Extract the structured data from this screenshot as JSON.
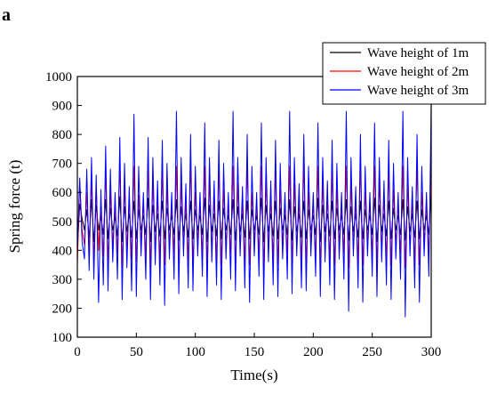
{
  "panel_label": "a",
  "chart_data": {
    "type": "line",
    "title": "",
    "xlabel": "Time(s)",
    "ylabel": "Spring force (t)",
    "xlim": [
      0,
      300
    ],
    "ylim": [
      100,
      1000
    ],
    "xticks": [
      0,
      50,
      100,
      150,
      200,
      250,
      300
    ],
    "yticks": [
      100,
      200,
      300,
      400,
      500,
      600,
      700,
      800,
      900,
      1000
    ],
    "grid": false,
    "legend_position": "top-right",
    "sample_step_s": 2,
    "series": [
      {
        "name": "Wave height of 1m",
        "color": "#000000",
        "values": [
          395,
          560,
          510,
          470,
          540,
          445,
          575,
          430,
          555,
          470,
          520,
          455,
          575,
          440,
          545,
          470,
          515,
          450,
          585,
          430,
          550,
          465,
          525,
          445,
          570,
          440,
          540,
          470,
          520,
          455,
          580,
          430,
          555,
          465,
          525,
          450,
          570,
          440,
          545,
          470,
          520,
          455,
          575,
          435,
          550,
          465,
          525,
          445,
          570,
          440,
          540,
          470,
          520,
          455,
          580,
          430,
          555,
          465,
          525,
          450,
          570,
          440,
          545,
          470,
          520,
          455,
          575,
          435,
          550,
          465,
          525,
          445,
          570,
          440,
          540,
          470,
          520,
          455,
          580,
          430,
          555,
          465,
          525,
          450,
          570,
          440,
          545,
          470,
          520,
          455,
          575,
          435,
          550,
          465,
          525,
          445,
          570,
          440,
          540,
          470,
          520,
          455,
          580,
          430,
          555,
          465,
          525,
          450,
          570,
          440,
          545,
          470,
          520,
          455,
          575,
          435,
          550,
          465,
          525,
          445,
          570,
          440,
          540,
          470,
          520,
          455,
          580,
          430,
          555,
          465,
          525,
          450,
          570,
          440,
          545,
          470,
          520,
          455,
          575,
          435,
          550,
          465,
          525,
          445,
          570,
          440,
          540,
          470,
          520,
          455,
          600
        ]
      },
      {
        "name": "Wave height of 2m",
        "color": "#ff0000",
        "values": [
          350,
          640,
          470,
          420,
          600,
          390,
          650,
          360,
          620,
          400,
          560,
          380,
          680,
          350,
          600,
          420,
          550,
          390,
          700,
          340,
          620,
          410,
          570,
          370,
          690,
          360,
          590,
          430,
          560,
          380,
          700,
          340,
          640,
          400,
          580,
          370,
          680,
          350,
          610,
          420,
          560,
          390,
          690,
          340,
          630,
          410,
          570,
          360,
          700,
          350,
          600,
          430,
          560,
          380,
          690,
          340,
          640,
          400,
          580,
          370,
          680,
          350,
          610,
          420,
          560,
          390,
          690,
          340,
          630,
          410,
          570,
          360,
          700,
          350,
          600,
          430,
          560,
          380,
          690,
          340,
          640,
          400,
          580,
          370,
          680,
          350,
          610,
          420,
          560,
          390,
          690,
          340,
          630,
          410,
          570,
          360,
          700,
          350,
          600,
          430,
          560,
          380,
          690,
          340,
          640,
          400,
          580,
          370,
          680,
          350,
          610,
          420,
          560,
          390,
          690,
          340,
          630,
          410,
          570,
          360,
          700,
          350,
          600,
          430,
          560,
          380,
          690,
          340,
          640,
          400,
          580,
          370,
          680,
          350,
          610,
          420,
          560,
          390,
          690,
          340,
          630,
          410,
          570,
          360,
          700,
          350,
          600,
          430,
          560,
          380,
          770
        ]
      },
      {
        "name": "Wave height of 3m",
        "color": "#0000ff",
        "values": [
          400,
          650,
          430,
          370,
          680,
          330,
          720,
          300,
          660,
          220,
          610,
          280,
          760,
          260,
          680,
          360,
          600,
          300,
          790,
          230,
          700,
          340,
          620,
          260,
          870,
          240,
          690,
          380,
          600,
          300,
          790,
          230,
          720,
          350,
          640,
          280,
          780,
          210,
          700,
          370,
          600,
          300,
          880,
          250,
          720,
          380,
          630,
          270,
          800,
          260,
          690,
          380,
          600,
          310,
          840,
          240,
          720,
          360,
          640,
          280,
          780,
          230,
          700,
          370,
          600,
          300,
          880,
          260,
          720,
          380,
          620,
          270,
          800,
          220,
          690,
          380,
          600,
          310,
          840,
          230,
          720,
          360,
          640,
          280,
          780,
          240,
          700,
          370,
          600,
          300,
          880,
          250,
          720,
          380,
          630,
          270,
          800,
          260,
          690,
          380,
          600,
          310,
          840,
          240,
          720,
          360,
          640,
          280,
          780,
          230,
          700,
          370,
          600,
          300,
          880,
          190,
          720,
          380,
          620,
          270,
          800,
          220,
          690,
          380,
          600,
          310,
          840,
          240,
          720,
          360,
          640,
          280,
          780,
          230,
          700,
          370,
          600,
          300,
          880,
          170,
          720,
          380,
          620,
          270,
          800,
          220,
          690,
          380,
          600,
          310,
          910
        ]
      }
    ]
  }
}
